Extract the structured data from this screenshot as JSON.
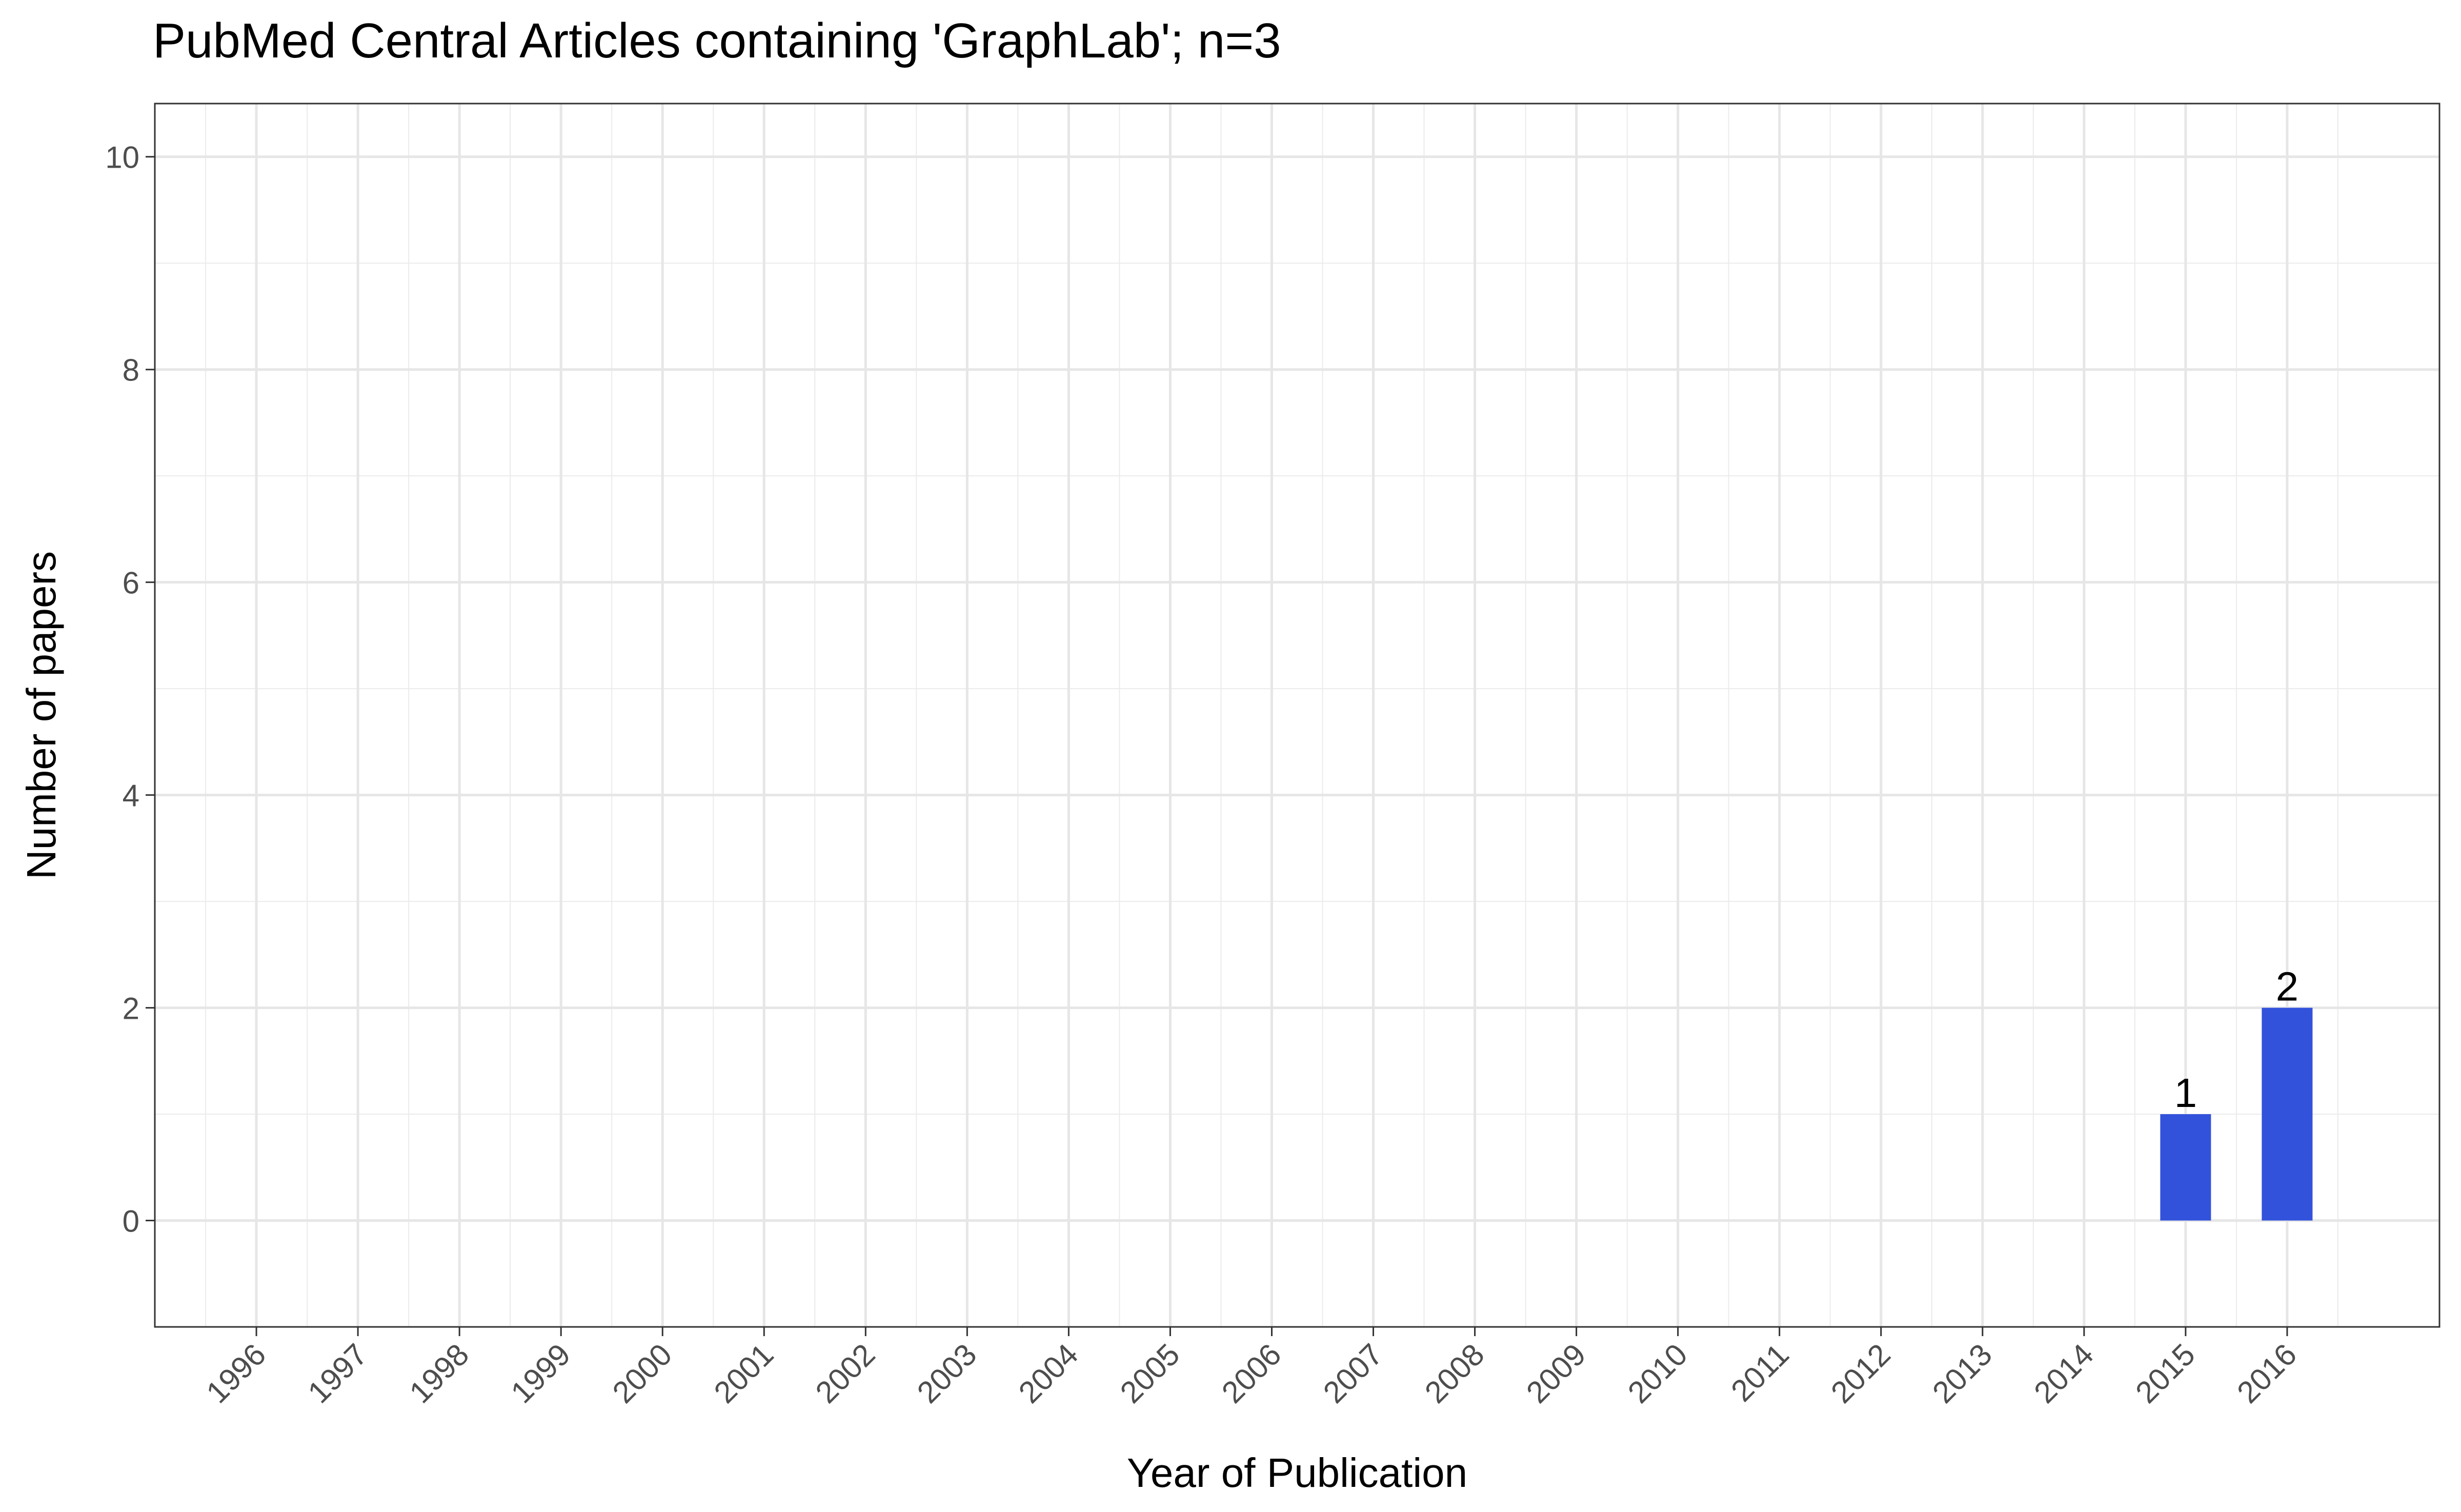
{
  "chart_data": {
    "type": "bar",
    "title": "PubMed Central Articles containing 'GraphLab'; n=3",
    "xlabel": "Year of Publication",
    "ylabel": "Number of papers",
    "categories": [
      "1996",
      "1997",
      "1998",
      "1999",
      "2000",
      "2001",
      "2002",
      "2003",
      "2004",
      "2005",
      "2006",
      "2007",
      "2008",
      "2009",
      "2010",
      "2011",
      "2012",
      "2013",
      "2014",
      "2015",
      "2016"
    ],
    "values": [
      0,
      0,
      0,
      0,
      0,
      0,
      0,
      0,
      0,
      0,
      0,
      0,
      0,
      0,
      0,
      0,
      0,
      0,
      0,
      1,
      2
    ],
    "data_labels": [
      {
        "category": "2015",
        "text": "1"
      },
      {
        "category": "2016",
        "text": "2"
      }
    ],
    "y_ticks": [
      "0",
      "2",
      "4",
      "6",
      "8",
      "10"
    ],
    "ylim": [
      -1,
      10.5
    ],
    "xlim": [
      1995,
      2017.5
    ],
    "grid": true,
    "bar_color": "#3352DB"
  }
}
